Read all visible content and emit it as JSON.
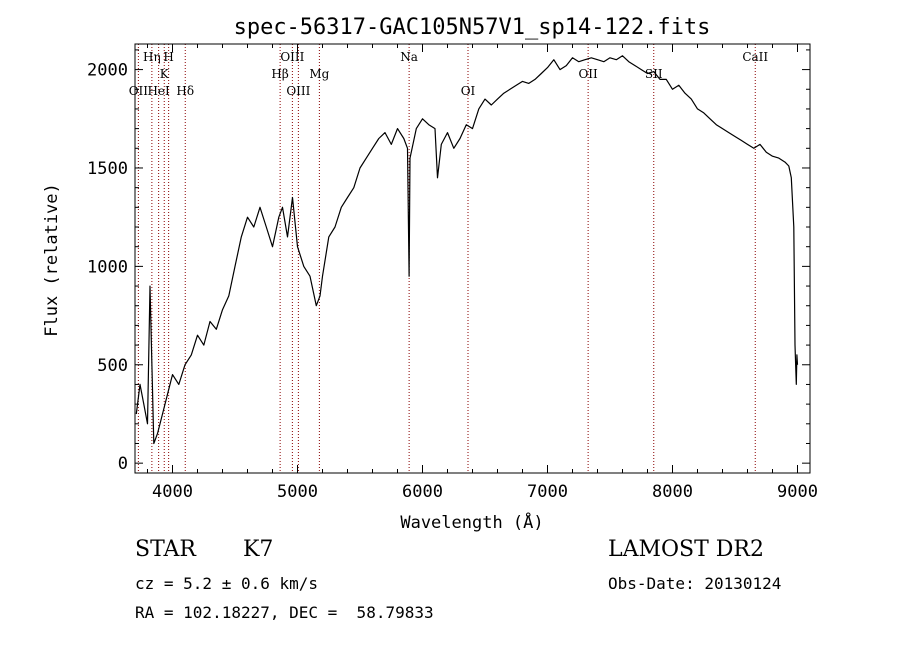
{
  "chart_data": {
    "type": "line",
    "title": "spec-56317-GAC105N57V1_sp14-122.fits",
    "xlabel": "Wavelength (Å)",
    "ylabel": "Flux (relative)",
    "xlim": [
      3700,
      9100
    ],
    "ylim": [
      -50,
      2130
    ],
    "xticks": [
      4000,
      5000,
      6000,
      7000,
      8000,
      9000
    ],
    "yticks": [
      0,
      500,
      1000,
      1500,
      2000
    ],
    "grid": false,
    "line_color": "#000000",
    "marker_color": "#8b0000",
    "lines": [
      {
        "label": "Hη",
        "x": 3835,
        "row": 0
      },
      {
        "label": "H",
        "x": 3969,
        "row": 0
      },
      {
        "label": "K",
        "x": 3934,
        "row": 1
      },
      {
        "label": "OII",
        "x": 3727,
        "row": 2
      },
      {
        "label": "HeI",
        "x": 3889,
        "row": 2
      },
      {
        "label": "Hδ",
        "x": 4102,
        "row": 2
      },
      {
        "label": "OIII",
        "x": 4959,
        "row": 0
      },
      {
        "label": "Hβ",
        "x": 4861,
        "row": 1
      },
      {
        "label": "Mg",
        "x": 5175,
        "row": 1
      },
      {
        "label": "OIII",
        "x": 5007,
        "row": 2
      },
      {
        "label": "Na",
        "x": 5893,
        "row": 0
      },
      {
        "label": "OI",
        "x": 6364,
        "row": 2
      },
      {
        "label": "OII",
        "x": 7325,
        "row": 1
      },
      {
        "label": "SII",
        "x": 7850,
        "row": 1
      },
      {
        "label": "CaII",
        "x": 8662,
        "row": 0
      }
    ],
    "series": [
      {
        "x": [
          3710,
          3740,
          3770,
          3800,
          3820,
          3850,
          3880,
          3920,
          3960,
          4000,
          4050,
          4100,
          4150,
          4200,
          4250,
          4300,
          4350,
          4400,
          4450,
          4500,
          4550,
          4600,
          4650,
          4700,
          4750,
          4800,
          4850,
          4880,
          4920,
          4960,
          5000,
          5050,
          5100,
          5150,
          5180,
          5200,
          5250,
          5300,
          5350,
          5400,
          5450,
          5500,
          5550,
          5600,
          5650,
          5700,
          5750,
          5800,
          5850,
          5880,
          5893,
          5900,
          5950,
          6000,
          6050,
          6100,
          6120,
          6150,
          6200,
          6250,
          6300,
          6350,
          6400,
          6450,
          6500,
          6550,
          6600,
          6650,
          6700,
          6750,
          6800,
          6850,
          6900,
          6950,
          7000,
          7050,
          7100,
          7150,
          7200,
          7250,
          7300,
          7350,
          7400,
          7450,
          7500,
          7550,
          7600,
          7650,
          7700,
          7750,
          7800,
          7850,
          7900,
          7950,
          8000,
          8050,
          8100,
          8150,
          8200,
          8250,
          8300,
          8350,
          8400,
          8450,
          8500,
          8550,
          8600,
          8650,
          8700,
          8750,
          8800,
          8850,
          8900,
          8930,
          8950,
          8970,
          8980,
          8990,
          8995,
          9000
        ],
        "y": [
          250,
          400,
          300,
          200,
          900,
          100,
          150,
          250,
          350,
          450,
          400,
          500,
          550,
          650,
          600,
          720,
          680,
          780,
          850,
          1000,
          1150,
          1250,
          1200,
          1300,
          1200,
          1100,
          1250,
          1300,
          1150,
          1350,
          1100,
          1000,
          950,
          800,
          850,
          950,
          1150,
          1200,
          1300,
          1350,
          1400,
          1500,
          1550,
          1600,
          1650,
          1680,
          1620,
          1700,
          1650,
          1600,
          950,
          1550,
          1700,
          1750,
          1720,
          1700,
          1450,
          1620,
          1680,
          1600,
          1650,
          1720,
          1700,
          1800,
          1850,
          1820,
          1850,
          1880,
          1900,
          1920,
          1940,
          1930,
          1950,
          1980,
          2010,
          2050,
          2000,
          2020,
          2060,
          2040,
          2050,
          2060,
          2050,
          2040,
          2060,
          2050,
          2070,
          2040,
          2020,
          2000,
          1980,
          1990,
          1950,
          1950,
          1900,
          1920,
          1880,
          1850,
          1800,
          1780,
          1750,
          1720,
          1700,
          1680,
          1660,
          1640,
          1620,
          1600,
          1620,
          1580,
          1560,
          1550,
          1530,
          1510,
          1450,
          1200,
          600,
          400,
          550,
          500
        ]
      }
    ]
  },
  "footer": {
    "class_label": "STAR",
    "subclass": "K7",
    "survey": "LAMOST DR2",
    "cz": "cz = 5.2 ± 0.6 km/s",
    "obs_date": "Obs-Date: 20130124",
    "coords": "RA = 102.18227, DEC =  58.79833"
  }
}
